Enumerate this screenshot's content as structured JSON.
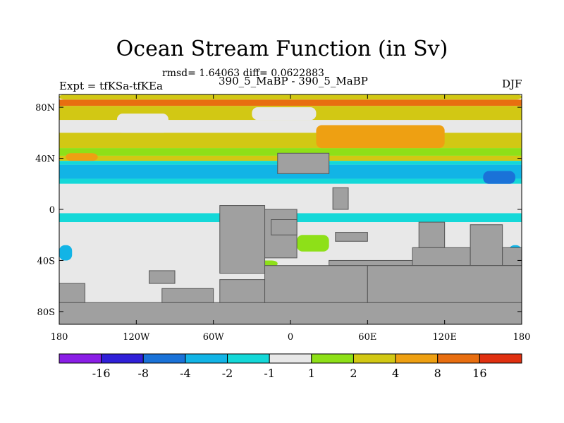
{
  "chart_data": {
    "type": "heatmap",
    "title": "Ocean Stream Function (in Sv)",
    "stats": "rmsd= 1.64063 diff= 0.0622883",
    "subtitle": "390_5_MaBP - 390_5_MaBP",
    "left_label": "Expt = tfKSa-tfKEa",
    "right_label": "DJF",
    "xlabel": "",
    "ylabel": "",
    "xlim": [
      -180,
      180
    ],
    "ylim": [
      -90,
      90
    ],
    "x_ticks": [
      {
        "value": -180,
        "label": "180"
      },
      {
        "value": -120,
        "label": "120W"
      },
      {
        "value": -60,
        "label": "60W"
      },
      {
        "value": 0,
        "label": "0"
      },
      {
        "value": 60,
        "label": "60E"
      },
      {
        "value": 120,
        "label": "120E"
      },
      {
        "value": 180,
        "label": "180"
      }
    ],
    "y_ticks": [
      {
        "value": 80,
        "label": "80N"
      },
      {
        "value": 40,
        "label": "40N"
      },
      {
        "value": 0,
        "label": "0"
      },
      {
        "value": -40,
        "label": "40S"
      },
      {
        "value": -80,
        "label": "80S"
      }
    ],
    "colorbar": {
      "colors": [
        "#8a1ee6",
        "#3020d8",
        "#1a72d8",
        "#12b4e6",
        "#14d8d8",
        "#e8e8e8",
        "#8ee018",
        "#d2c814",
        "#eea012",
        "#e86e10",
        "#e03010"
      ],
      "labels": [
        "-16",
        "-8",
        "-4",
        "-2",
        "-1",
        "1",
        "2",
        "4",
        "8",
        "16"
      ]
    },
    "land_color": "#a0a0a0",
    "bands": [
      {
        "lat": [
          81,
          86
        ],
        "color": "#e86e10"
      },
      {
        "lat": [
          70,
          81
        ],
        "color": "#d2c814"
      },
      {
        "lat": [
          60,
          70
        ],
        "color": "#e8e8e8"
      },
      {
        "lat": [
          48,
          60
        ],
        "color": "#d2c814"
      },
      {
        "lat": [
          42,
          48
        ],
        "color": "#8ee018"
      },
      {
        "lat": [
          38,
          42
        ],
        "color": "#d2c814"
      },
      {
        "lat": [
          35,
          38
        ],
        "color": "#14d8d8"
      },
      {
        "lat": [
          24,
          35
        ],
        "color": "#12b4e6"
      },
      {
        "lat": [
          20,
          24
        ],
        "color": "#14d8d8"
      },
      {
        "lat": [
          -3,
          20
        ],
        "color": "#e8e8e8"
      },
      {
        "lat": [
          -10,
          -3
        ],
        "color": "#14d8d8"
      },
      {
        "lat": [
          -90,
          -10
        ],
        "color": "#e8e8e8"
      }
    ],
    "patches": [
      {
        "lon": [
          -180,
          180
        ],
        "lat": [
          86,
          90
        ],
        "color": "#d2c814"
      },
      {
        "lon": [
          -135,
          -95
        ],
        "lat": [
          60,
          75
        ],
        "color": "#e8e8e8"
      },
      {
        "lon": [
          -30,
          20
        ],
        "lat": [
          70,
          80
        ],
        "color": "#e8e8e8"
      },
      {
        "lon": [
          20,
          120
        ],
        "lat": [
          48,
          66
        ],
        "color": "#eea012"
      },
      {
        "lon": [
          -175,
          -150
        ],
        "lat": [
          38,
          44
        ],
        "color": "#eea012"
      },
      {
        "lon": [
          150,
          175
        ],
        "lat": [
          20,
          30
        ],
        "color": "#1a72d8"
      },
      {
        "lon": [
          -180,
          -170
        ],
        "lat": [
          -40,
          -28
        ],
        "color": "#12b4e6"
      },
      {
        "lon": [
          170,
          180
        ],
        "lat": [
          -40,
          -28
        ],
        "color": "#12b4e6"
      },
      {
        "lon": [
          5,
          30
        ],
        "lat": [
          -33,
          -20
        ],
        "color": "#8ee018"
      },
      {
        "lon": [
          -25,
          -10
        ],
        "lat": [
          -45,
          -40
        ],
        "color": "#8ee018"
      }
    ],
    "land": [
      {
        "lon": [
          -10,
          30
        ],
        "lat": [
          28,
          44
        ]
      },
      {
        "lon": [
          33,
          45
        ],
        "lat": [
          0,
          17
        ]
      },
      {
        "lon": [
          -25,
          5
        ],
        "lat": [
          -38,
          0
        ]
      },
      {
        "lon": [
          -55,
          -20
        ],
        "lat": [
          -50,
          3
        ]
      },
      {
        "lon": [
          -15,
          5
        ],
        "lat": [
          -20,
          -8
        ]
      },
      {
        "lon": [
          35,
          60
        ],
        "lat": [
          -25,
          -18
        ]
      },
      {
        "lon": [
          30,
          105
        ],
        "lat": [
          -44,
          -40
        ]
      },
      {
        "lon": [
          100,
          120
        ],
        "lat": [
          -30,
          -10
        ]
      },
      {
        "lon": [
          95,
          140
        ],
        "lat": [
          -44,
          -30
        ]
      },
      {
        "lon": [
          140,
          165
        ],
        "lat": [
          -44,
          -12
        ]
      },
      {
        "lon": [
          165,
          180
        ],
        "lat": [
          -44,
          -30
        ]
      },
      {
        "lon": [
          -110,
          -90
        ],
        "lat": [
          -58,
          -48
        ]
      },
      {
        "lon": [
          -180,
          180
        ],
        "lat": [
          -90,
          -73
        ]
      },
      {
        "lon": [
          -180,
          -160
        ],
        "lat": [
          -73,
          -58
        ]
      },
      {
        "lon": [
          -100,
          -60
        ],
        "lat": [
          -73,
          -62
        ]
      },
      {
        "lon": [
          -55,
          -20
        ],
        "lat": [
          -73,
          -55
        ]
      },
      {
        "lon": [
          -20,
          60
        ],
        "lat": [
          -73,
          -44
        ]
      },
      {
        "lon": [
          60,
          180
        ],
        "lat": [
          -73,
          -44
        ]
      }
    ]
  }
}
